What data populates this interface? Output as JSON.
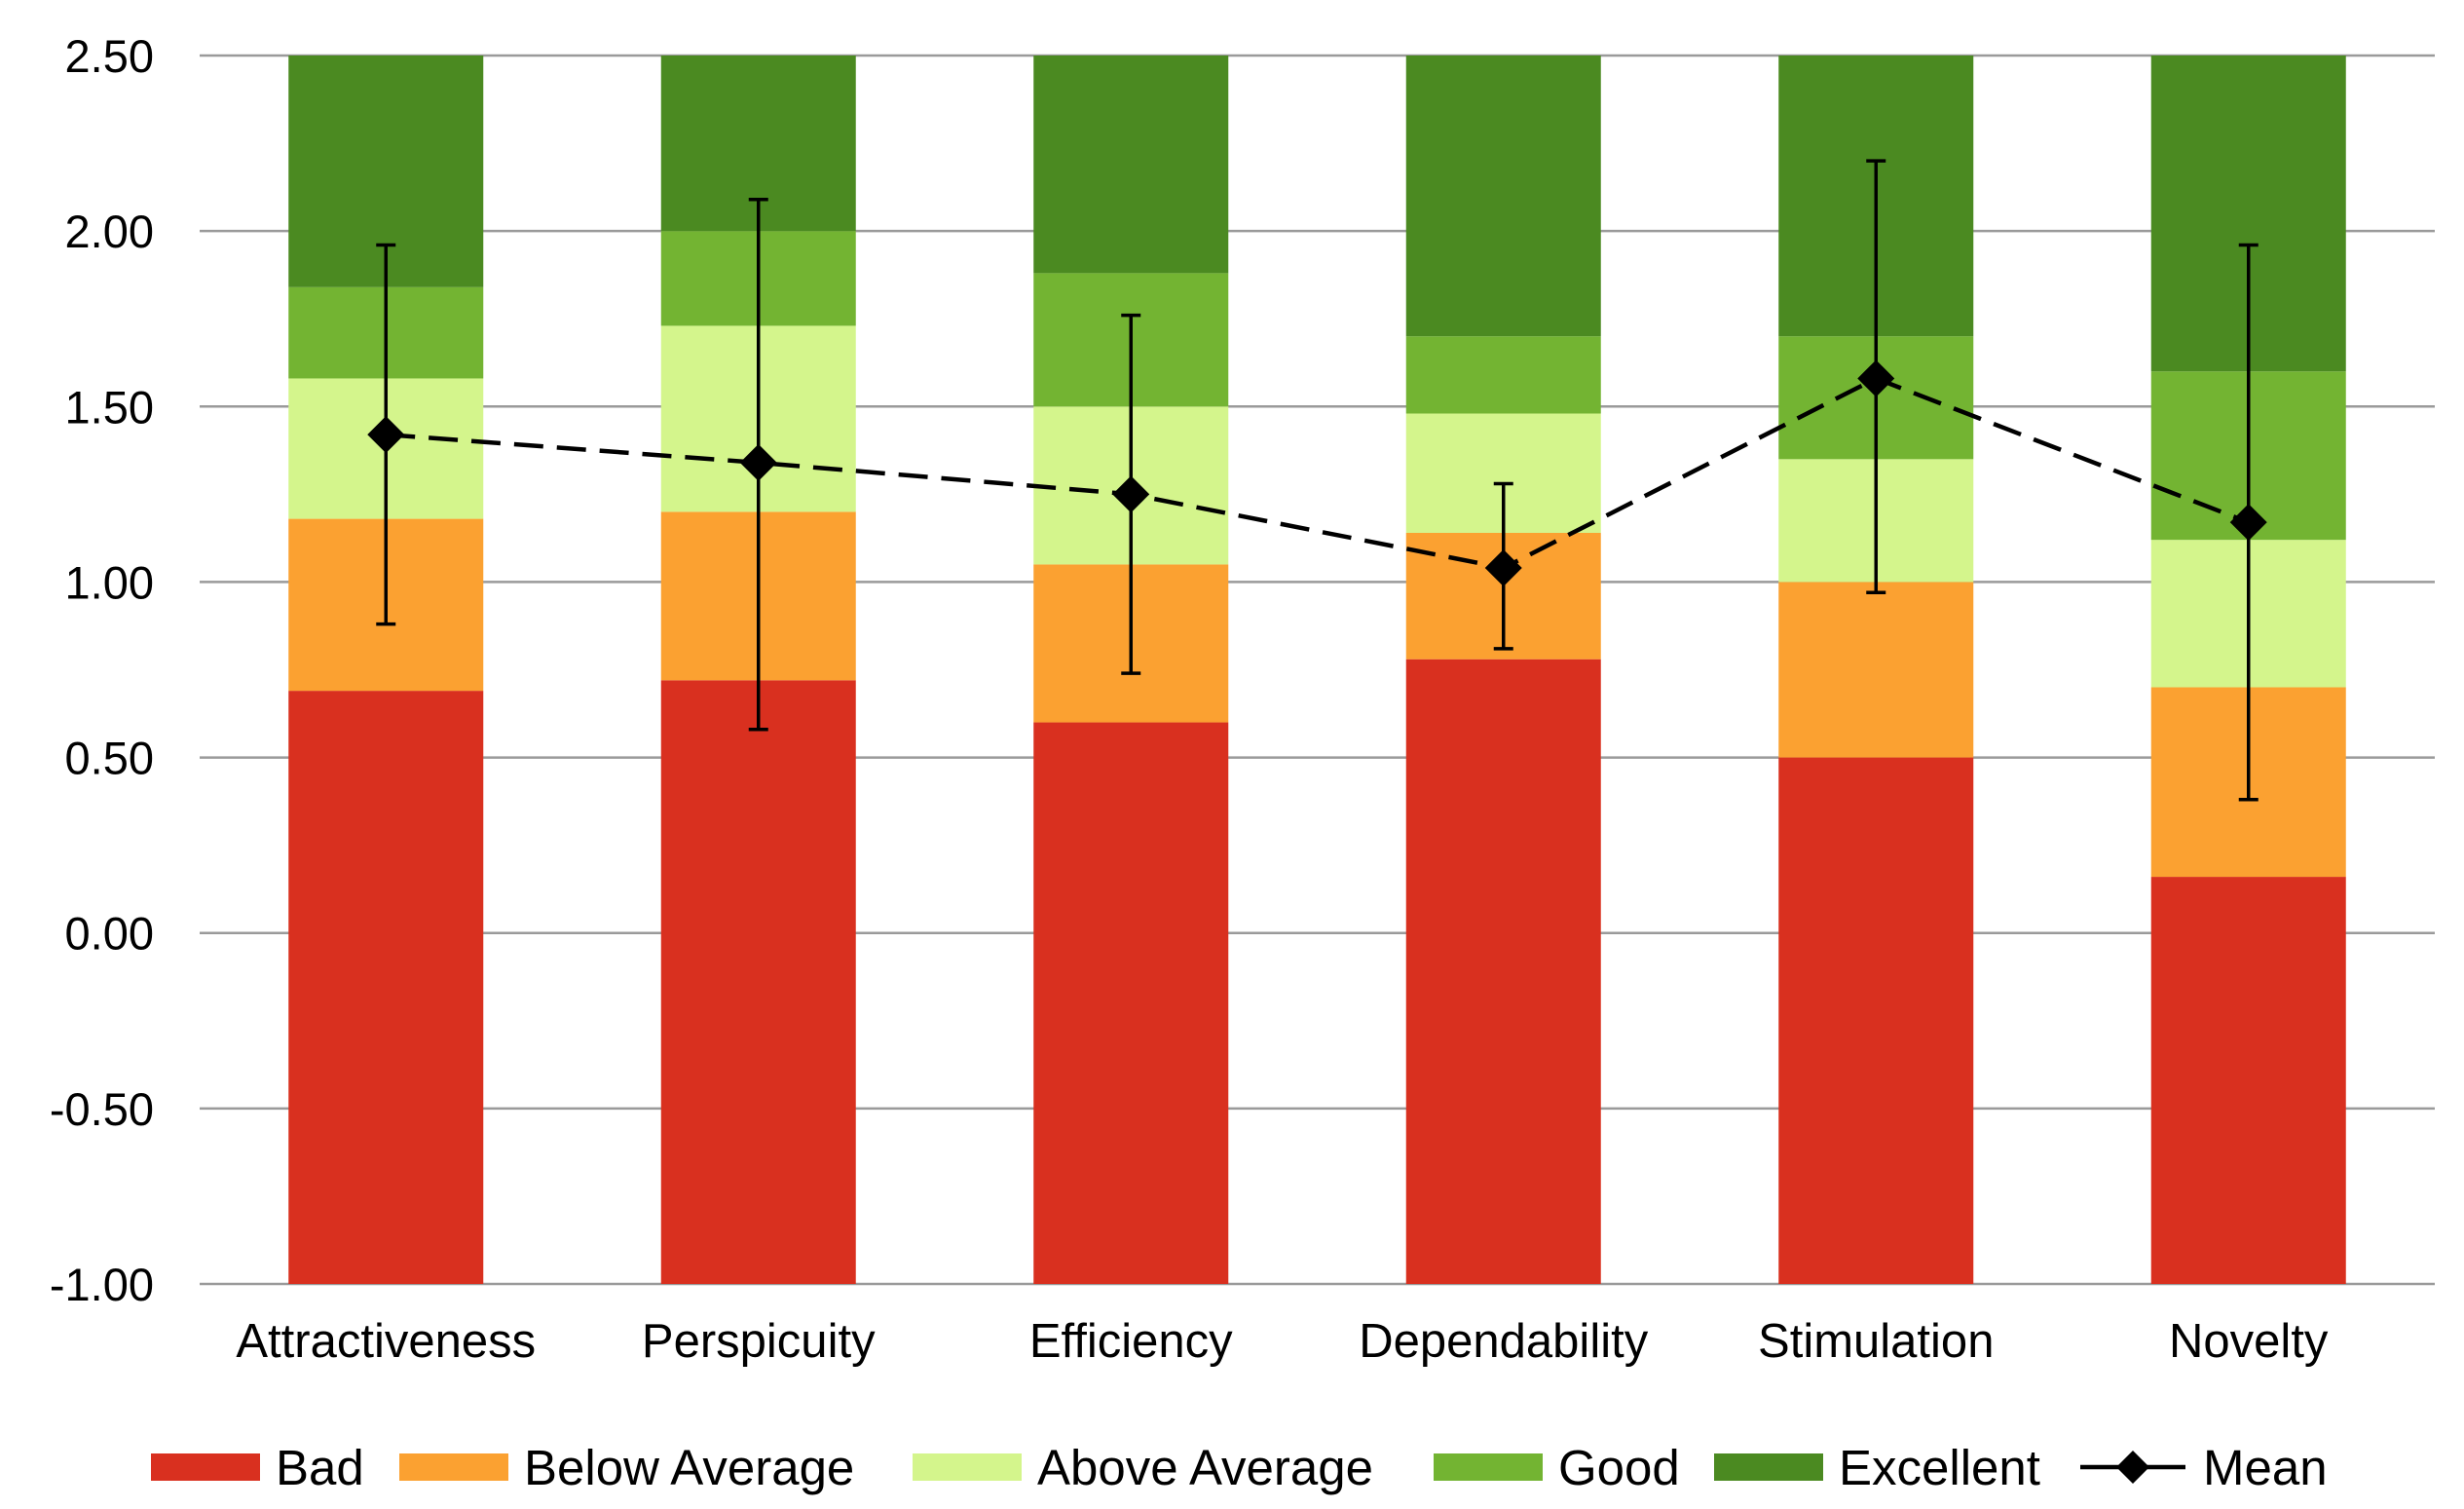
{
  "chart_data": {
    "type": "bar",
    "subtype": "stacked-benchmark-with-mean-line",
    "title": "",
    "xlabel": "",
    "ylabel": "",
    "ylim": [
      -1.0,
      2.5
    ],
    "yticks": [
      "2.50",
      "2.00",
      "1.50",
      "1.00",
      "0.50",
      "0.00",
      "-0.50",
      "-1.00"
    ],
    "ytick_values": [
      2.5,
      2.0,
      1.5,
      1.0,
      0.5,
      0.0,
      -0.5,
      -1.0
    ],
    "grid": true,
    "legend_position": "bottom",
    "categories": [
      "Attractiveness",
      "Perspicuity",
      "Efficiency",
      "Dependability",
      "Stimulation",
      "Novelty"
    ],
    "series": [
      {
        "name": "Bad",
        "color": "#d9301f",
        "upper_bounds": [
          0.69,
          0.72,
          0.6,
          0.78,
          0.5,
          0.16
        ]
      },
      {
        "name": "Below Average",
        "color": "#fba131",
        "upper_bounds": [
          1.18,
          1.2,
          1.05,
          1.14,
          1.0,
          0.7
        ]
      },
      {
        "name": "Above Average",
        "color": "#d4f58c",
        "upper_bounds": [
          1.58,
          1.73,
          1.5,
          1.48,
          1.35,
          1.12
        ]
      },
      {
        "name": "Good",
        "color": "#73b432",
        "upper_bounds": [
          1.84,
          2.0,
          1.88,
          1.7,
          1.7,
          1.6
        ]
      },
      {
        "name": "Excellent",
        "color": "#4b8a21",
        "upper_bounds": [
          2.5,
          2.5,
          2.5,
          2.5,
          2.5,
          2.5
        ]
      }
    ],
    "mean": {
      "name": "Mean",
      "values": [
        1.42,
        1.34,
        1.25,
        1.04,
        1.58,
        1.17
      ],
      "error_low": [
        0.88,
        0.58,
        0.74,
        0.81,
        0.97,
        0.38
      ],
      "error_high": [
        1.96,
        2.09,
        1.76,
        1.28,
        2.2,
        1.96
      ],
      "line_style": "dashed",
      "marker": "diamond",
      "color": "#000000"
    }
  }
}
